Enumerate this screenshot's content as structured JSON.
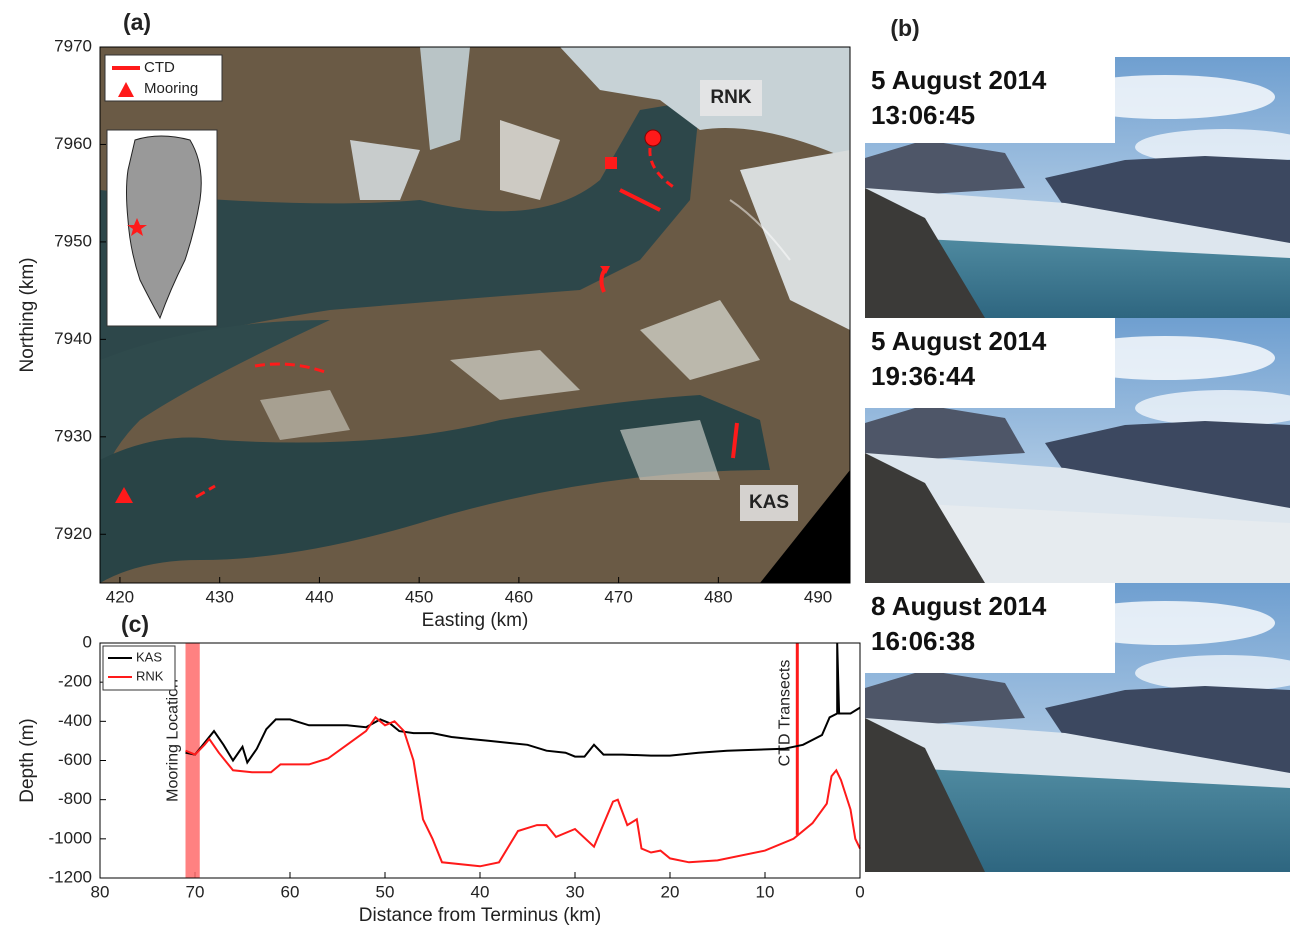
{
  "chart_data": [
    {
      "type": "map",
      "panel": "(a)",
      "xlabel": "Easting (km)",
      "ylabel": "Northing (km)",
      "xlim": [
        418,
        493.2
      ],
      "ylim": [
        7915,
        7970
      ],
      "xticks": [
        420,
        430,
        440,
        450,
        460,
        470,
        480,
        490
      ],
      "yticks": [
        7920,
        7930,
        7940,
        7950,
        7960,
        7970
      ],
      "legend": [
        {
          "name": "CTD",
          "color": "#ff1a1a",
          "marker": "line"
        },
        {
          "name": "Mooring",
          "color": "#ff1a1a",
          "marker": "triangle"
        }
      ],
      "labels": [
        "RNK",
        "KAS"
      ]
    },
    {
      "type": "line",
      "panel": "(c)",
      "xlabel": "Distance from Terminus (km)",
      "ylabel": "Depth (m)",
      "xlim": [
        80,
        0
      ],
      "ylim": [
        -1200,
        0
      ],
      "xticks": [
        80,
        70,
        60,
        50,
        40,
        30,
        20,
        10,
        0
      ],
      "yticks": [
        0,
        -200,
        -400,
        -600,
        -800,
        -1000,
        -1200
      ],
      "legend_position": "upper left",
      "series": [
        {
          "name": "KAS",
          "color": "#000000",
          "x": [
            71,
            70,
            69,
            68,
            67,
            66,
            65,
            64.5,
            63.5,
            62.5,
            61.5,
            60,
            58,
            56,
            54,
            52,
            50.5,
            49.5,
            48.5,
            47,
            45,
            43,
            41,
            39,
            37,
            35,
            33,
            31,
            30,
            29,
            28,
            27,
            25,
            22,
            20,
            17,
            14,
            11,
            8,
            6,
            4,
            3.2,
            2.4,
            2.4,
            2.2,
            1,
            0
          ],
          "values": [
            -560,
            -570,
            -510,
            -450,
            -520,
            -600,
            -530,
            -610,
            -540,
            -440,
            -390,
            -390,
            -420,
            -420,
            -420,
            -430,
            -390,
            -410,
            -450,
            -460,
            -460,
            -480,
            -490,
            -500,
            -510,
            -520,
            -550,
            -560,
            -580,
            -580,
            -520,
            -570,
            -570,
            -575,
            -575,
            -560,
            -550,
            -545,
            -540,
            -520,
            -470,
            -380,
            -360,
            0,
            -360,
            -360,
            -330
          ]
        },
        {
          "name": "RNK",
          "color": "#ff1a1a",
          "x": [
            71,
            70,
            69,
            68.5,
            67.5,
            66,
            64,
            62,
            61,
            58,
            56,
            54,
            52,
            51,
            50,
            49,
            48,
            47,
            46,
            45,
            44,
            40,
            38,
            36,
            34,
            33,
            32,
            30,
            28,
            26,
            25.5,
            24.5,
            23.5,
            23,
            22,
            21,
            20,
            18,
            15,
            10,
            7,
            5,
            3.5,
            3,
            2.5,
            2,
            1,
            0.5,
            0
          ],
          "values": [
            -550,
            -570,
            -520,
            -490,
            -560,
            -650,
            -660,
            -660,
            -620,
            -620,
            -590,
            -520,
            -450,
            -380,
            -420,
            -400,
            -450,
            -600,
            -900,
            -1000,
            -1120,
            -1140,
            -1120,
            -960,
            -930,
            -930,
            -990,
            -950,
            -1040,
            -810,
            -800,
            -930,
            -900,
            -1050,
            -1070,
            -1060,
            -1100,
            -1120,
            -1110,
            -1060,
            -1000,
            -920,
            -820,
            -680,
            -650,
            -700,
            -850,
            -1000,
            -1050
          ]
        }
      ],
      "annotations": [
        {
          "text": "Mooring Location",
          "x": [
            71,
            69.5
          ]
        },
        {
          "text": "CTD Transects",
          "x": 6.6,
          "y": [
            -980,
            0
          ]
        }
      ]
    }
  ],
  "photos": {
    "panel": "(b)",
    "items": [
      {
        "date": "5 August 2014",
        "time": "13:06:45"
      },
      {
        "date": "5 August 2014",
        "time": "19:36:44"
      },
      {
        "date": "8 August 2014",
        "time": "16:06:38"
      }
    ]
  }
}
